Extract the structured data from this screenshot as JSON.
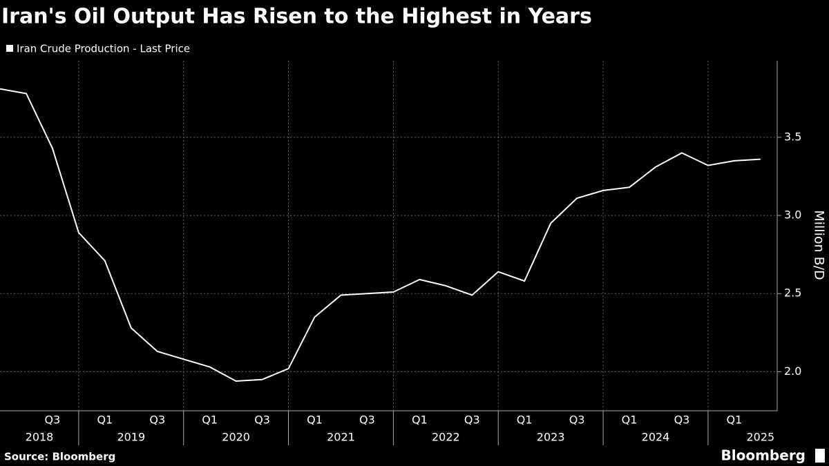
{
  "chart_data": {
    "type": "line",
    "title": "Iran's Oil Output Has Risen to the Highest in Years",
    "y_axis_label": "Million B/D",
    "source": "Source: Bloomberg",
    "brand": "Bloomberg",
    "categories": [
      null,
      null,
      "Q3",
      null,
      "Q1",
      null,
      "Q3",
      null,
      "Q1",
      null,
      "Q3",
      null,
      "Q1",
      null,
      "Q3",
      null,
      "Q1",
      null,
      "Q3",
      null,
      "Q1",
      null,
      "Q3",
      null,
      "Q1",
      null,
      "Q3",
      null,
      "Q1",
      null
    ],
    "years": [
      "2018",
      "2019",
      "2020",
      "2021",
      "2022",
      "2023",
      "2024",
      "2025"
    ],
    "series": [
      {
        "name": "Iran Crude Production - Last Price",
        "color": "#ffffff",
        "values": [
          3.81,
          3.78,
          3.43,
          2.89,
          2.71,
          2.28,
          2.13,
          2.08,
          2.03,
          1.94,
          1.95,
          2.02,
          2.35,
          2.49,
          2.5,
          2.51,
          2.59,
          2.55,
          2.49,
          2.64,
          2.58,
          2.95,
          3.11,
          3.16,
          3.18,
          3.31,
          3.4,
          3.32,
          3.35,
          3.36
        ]
      }
    ],
    "ylim": [
      1.75,
      3.99
    ],
    "yticks": [
      {
        "value": 2,
        "label": "2.0"
      },
      2.5,
      {
        "value": 3,
        "label": "3.0"
      },
      3.5
    ],
    "grid": true
  }
}
